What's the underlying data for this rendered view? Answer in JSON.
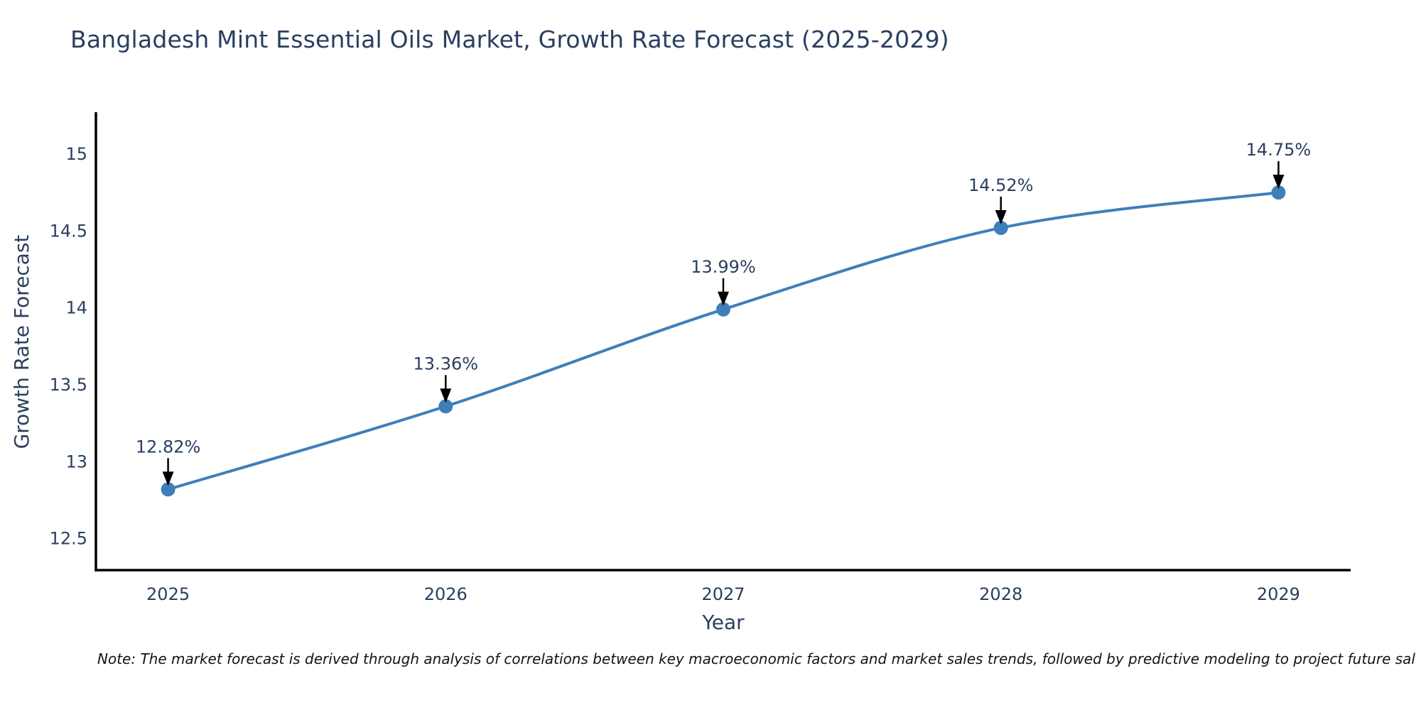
{
  "title_block": {
    "title": "Bangladesh Mint Essential Oils Market, Growth Rate Forecast (2025-2029)"
  },
  "note": {
    "text": "Note: The market forecast is derived through analysis of correlations between key macroeconomic factors and market sales trends, followed by predictive modeling to project future sal"
  },
  "colors": {
    "font": "#2a3f5f",
    "line": "#3e7fba",
    "marker": "#3e7fba",
    "axis": "#000000",
    "arrow": "#000000",
    "background": "#ffffff"
  },
  "chart_data": {
    "type": "line",
    "title": "Bangladesh Mint Essential Oils Market, Growth Rate Forecast (2025-2029)",
    "x": [
      2025,
      2026,
      2027,
      2028,
      2029
    ],
    "y": [
      12.82,
      13.36,
      13.99,
      14.52,
      14.75
    ],
    "point_labels": [
      "12.82%",
      "13.36%",
      "13.99%",
      "14.52%",
      "14.75%"
    ],
    "xlabel": "Year",
    "ylabel": "Growth Rate Forecast",
    "xticks": [
      2025,
      2026,
      2027,
      2028,
      2029
    ],
    "xtick_labels": [
      "2025",
      "2026",
      "2027",
      "2028",
      "2029"
    ],
    "yticks": [
      12.5,
      13,
      13.5,
      14,
      14.5,
      15
    ],
    "ytick_labels": [
      "12.5",
      "13",
      "13.5",
      "14",
      "14.5",
      "15"
    ],
    "xlim": [
      2024.74,
      2029.26
    ],
    "ylim": [
      12.295,
      15.263
    ],
    "grid": false,
    "legend": "none",
    "line_shape": "spline"
  }
}
